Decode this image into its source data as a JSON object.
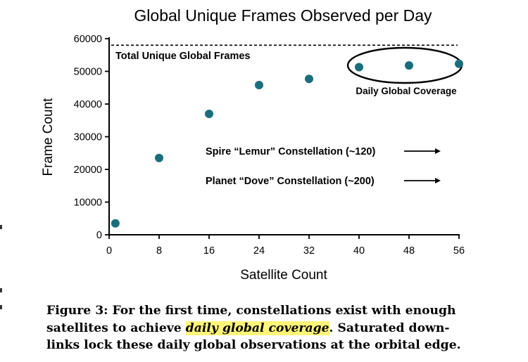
{
  "chart_data": {
    "type": "scatter",
    "title": "Global Unique Frames Observed per Day",
    "xlabel": "Satellite Count",
    "ylabel": "Frame Count",
    "xlim": [
      0,
      56
    ],
    "ylim": [
      0,
      60000
    ],
    "xticks": [
      0,
      8,
      16,
      24,
      32,
      40,
      48,
      56
    ],
    "yticks": [
      0,
      10000,
      20000,
      30000,
      40000,
      50000,
      60000
    ],
    "x": [
      1,
      8,
      16,
      24,
      32,
      40,
      48,
      56
    ],
    "y": [
      3500,
      23500,
      37000,
      45800,
      47700,
      51300,
      51800,
      52300
    ],
    "marker_color": "#1a6e7c",
    "reference_line": {
      "value": 58000,
      "label": "Total Unique Global Frames"
    },
    "annotations": [
      {
        "text": "Daily Global Coverage",
        "encircles_points": [
          5,
          6,
          7
        ]
      },
      {
        "text": "Spire “Lemur” Constellation (~120)",
        "arrow": "right"
      },
      {
        "text": "Planet “Dove” Constellation (~200)",
        "arrow": "right"
      }
    ]
  },
  "caption": {
    "prefix": "Figure 3: For the first time, constellations exist with enough satellites to achieve",
    "highlight": "daily global coverage",
    "suffix": ". Saturated downlinks lock these daily global observations at the orbital edge.",
    "highlight_color": "#fff47a"
  }
}
